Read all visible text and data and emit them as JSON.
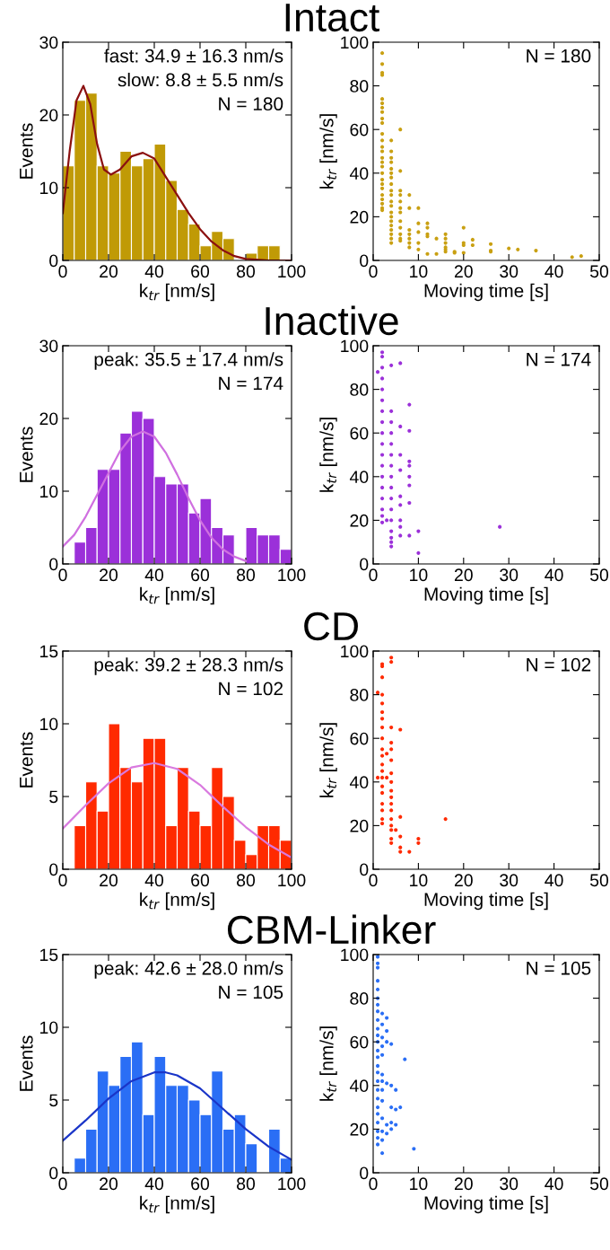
{
  "chart_data": [
    {
      "type": "histogram",
      "title": "Intact",
      "xlabel": "k$_{tr}$ [nm/s]",
      "ylabel": "Events",
      "color": "#c09a06",
      "bins": [
        0,
        5,
        10,
        15,
        20,
        25,
        30,
        35,
        40,
        45,
        50,
        55,
        60,
        65,
        70,
        75,
        80,
        85,
        90,
        95,
        100
      ],
      "values": [
        13,
        22,
        23,
        13,
        12,
        15,
        13,
        14,
        16,
        11,
        7,
        5,
        2,
        4,
        3,
        0,
        1,
        2,
        2,
        0
      ],
      "series": [
        {
          "type": "line",
          "color": "#8b1010",
          "x": [
            0,
            3,
            6,
            9,
            12,
            15,
            18,
            21,
            25,
            30,
            35,
            40,
            45,
            50,
            55,
            60,
            65,
            70,
            75,
            80,
            90,
            100
          ],
          "values": [
            6.5,
            15,
            22,
            24,
            21.5,
            16,
            12.5,
            11.8,
            12.5,
            14.3,
            14.8,
            14,
            11.5,
            9,
            6.5,
            4.3,
            2.6,
            1.4,
            0.6,
            0.2,
            0,
            0
          ]
        }
      ],
      "annotations": [
        "fast: 34.9 ± 16.3 nm/s",
        "slow: 8.8 ± 5.5 nm/s",
        "N = 180"
      ],
      "xlim": [
        0,
        100
      ],
      "ylim": [
        0,
        30
      ],
      "xticks": [
        0,
        20,
        40,
        60,
        80,
        100
      ],
      "yticks": [
        0,
        10,
        20,
        30
      ]
    },
    {
      "type": "scatter",
      "xlabel": "Moving time [s]",
      "ylabel": "k$_{tr}$ [nm/s]",
      "color": "#c9a012",
      "annotations": [
        "N = 180"
      ],
      "x": [
        2,
        2,
        2,
        2,
        2,
        2,
        2,
        2,
        2,
        2,
        2,
        2,
        2,
        2,
        2,
        2,
        2,
        2,
        2,
        2,
        2,
        2,
        2,
        2,
        2,
        2,
        4,
        4,
        4,
        4,
        4,
        4,
        4,
        4,
        4,
        4,
        4,
        4,
        4,
        4,
        4,
        4,
        4,
        4,
        4,
        4,
        6,
        6,
        6,
        6,
        6,
        6,
        6,
        6,
        6,
        6,
        6,
        6,
        8,
        8,
        8,
        8,
        8,
        8,
        8,
        10,
        10,
        10,
        10,
        10,
        12,
        12,
        12,
        12,
        12,
        14,
        14,
        16,
        16,
        16,
        16,
        16,
        16,
        18,
        18,
        20,
        20,
        20,
        20,
        22,
        22,
        26,
        26,
        26,
        30,
        32,
        36,
        44,
        46
      ],
      "values": [
        95,
        90,
        86,
        85,
        74,
        72,
        70,
        68,
        65,
        63,
        58,
        55,
        52,
        50,
        47,
        45,
        43,
        40,
        37,
        35,
        33,
        30,
        28,
        26,
        24,
        23,
        55,
        50,
        47,
        45,
        42,
        40,
        38,
        35,
        32,
        30,
        27,
        25,
        22,
        20,
        18,
        16,
        14,
        12,
        10,
        8,
        60,
        41,
        32,
        30,
        27,
        24,
        22,
        18,
        15,
        12,
        10,
        9,
        30,
        24,
        14,
        12,
        10,
        8,
        6,
        24,
        17,
        13,
        8,
        5,
        17,
        15,
        12,
        11,
        3,
        10,
        3,
        12,
        10,
        8,
        6,
        5,
        4,
        4,
        3.5,
        15,
        8,
        7,
        3.5,
        9.5,
        7,
        7.5,
        4.5,
        4,
        5.5,
        5,
        4.5,
        1.5,
        2
      ],
      "xlim": [
        0,
        50
      ],
      "ylim": [
        0,
        100
      ],
      "xticks": [
        0,
        10,
        20,
        30,
        40,
        50
      ],
      "yticks": [
        0,
        20,
        40,
        60,
        80,
        100
      ]
    },
    {
      "type": "histogram",
      "title": "Inactive",
      "xlabel": "k$_{tr}$ [nm/s]",
      "ylabel": "Events",
      "color": "#9b30d9",
      "bins": [
        0,
        5,
        10,
        15,
        20,
        25,
        30,
        35,
        40,
        45,
        50,
        55,
        60,
        65,
        70,
        75,
        80,
        85,
        90,
        95,
        100
      ],
      "values": [
        0,
        3,
        5,
        13,
        13,
        18,
        21,
        20,
        12,
        11,
        11,
        7,
        9,
        5,
        4,
        0,
        5,
        4,
        4,
        2
      ],
      "series": [
        {
          "type": "line",
          "color": "#d070e0",
          "x": [
            0,
            5,
            10,
            15,
            20,
            25,
            30,
            35,
            40,
            45,
            50,
            55,
            60,
            65,
            70,
            75,
            80
          ],
          "values": [
            2.4,
            4,
            6.5,
            9.5,
            12.5,
            15.5,
            17.5,
            18.2,
            17.5,
            15.3,
            12.3,
            9,
            6,
            3.6,
            2,
            1,
            0.4
          ]
        }
      ],
      "annotations": [
        "peak: 35.5 ± 17.4 nm/s",
        "N = 174"
      ],
      "xlim": [
        0,
        100
      ],
      "ylim": [
        0,
        30
      ],
      "xticks": [
        0,
        20,
        40,
        60,
        80,
        100
      ],
      "yticks": [
        0,
        10,
        20,
        30
      ]
    },
    {
      "type": "scatter",
      "xlabel": "Moving time [s]",
      "ylabel": "k$_{tr}$ [nm/s]",
      "color": "#9b30d9",
      "annotations": [
        "N = 174"
      ],
      "x": [
        1,
        2,
        2,
        2,
        2,
        2,
        2,
        2,
        2,
        2,
        2,
        2,
        2,
        2,
        2,
        2,
        2,
        2,
        2,
        3,
        4,
        4,
        4,
        4,
        4,
        4,
        4,
        4,
        4,
        4,
        4,
        4,
        4,
        4,
        4,
        4,
        6,
        6,
        6,
        6,
        6,
        6,
        6,
        6,
        6,
        8,
        8,
        8,
        8,
        8,
        8,
        8,
        8,
        10,
        10,
        28
      ],
      "values": [
        88,
        97,
        95,
        90,
        85,
        80,
        75,
        70,
        65,
        60,
        55,
        50,
        45,
        40,
        35,
        30,
        25,
        22,
        19,
        20,
        91,
        70,
        65,
        60,
        55,
        50,
        45,
        40,
        35,
        30,
        25,
        20,
        15,
        12,
        10,
        8,
        92,
        63,
        50,
        43,
        31,
        27,
        20,
        17,
        13,
        73,
        61,
        47,
        45,
        40,
        36,
        28,
        13,
        15,
        5,
        17
      ],
      "xlim": [
        0,
        50
      ],
      "ylim": [
        0,
        100
      ],
      "xticks": [
        0,
        10,
        20,
        30,
        40,
        50
      ],
      "yticks": [
        0,
        20,
        40,
        60,
        80,
        100
      ]
    },
    {
      "type": "histogram",
      "title": "CD",
      "xlabel": "k$_{tr}$ [nm/s]",
      "ylabel": "Events",
      "color": "#ff2a00",
      "bins": [
        0,
        5,
        10,
        15,
        20,
        25,
        30,
        35,
        40,
        45,
        50,
        55,
        60,
        65,
        70,
        75,
        80,
        85,
        90,
        95,
        100
      ],
      "values": [
        0,
        3,
        6,
        4,
        10,
        7,
        6,
        9,
        9,
        3,
        7,
        4,
        3,
        7,
        5,
        2,
        1,
        3,
        3,
        2
      ],
      "series": [
        {
          "type": "line",
          "color": "#d97adf",
          "x": [
            0,
            10,
            20,
            30,
            40,
            50,
            60,
            70,
            80,
            90,
            100
          ],
          "values": [
            2.8,
            4.4,
            5.9,
            7,
            7.3,
            6.9,
            5.8,
            4.3,
            2.9,
            1.7,
            0.8
          ]
        }
      ],
      "annotations": [
        "peak: 39.2 ± 28.3 nm/s",
        "N = 102"
      ],
      "xlim": [
        0,
        100
      ],
      "ylim": [
        0,
        15
      ],
      "xticks": [
        0,
        20,
        40,
        60,
        80,
        100
      ],
      "yticks": [
        0,
        5,
        10,
        15
      ]
    },
    {
      "type": "scatter",
      "xlabel": "Moving time [s]",
      "ylabel": "k$_{tr}$ [nm/s]",
      "color": "#ff2a00",
      "annotations": [
        "N = 102"
      ],
      "x": [
        1,
        1,
        2,
        2,
        2,
        2,
        2,
        2,
        2,
        2,
        2,
        2,
        2,
        2,
        2,
        2,
        2,
        2,
        2,
        2,
        2,
        2,
        3,
        3,
        4,
        4,
        4,
        4,
        4,
        4,
        4,
        4,
        4,
        4,
        4,
        4,
        4,
        4,
        4,
        4,
        4,
        5,
        6,
        6,
        6,
        6,
        6,
        8,
        10,
        10,
        16
      ],
      "values": [
        81,
        42,
        94,
        93,
        88,
        80,
        76,
        72,
        69,
        65,
        60,
        55,
        52,
        48,
        45,
        42,
        38,
        35,
        30,
        27,
        23,
        21,
        53,
        42,
        97,
        95,
        65,
        58,
        55,
        50,
        44,
        40,
        36,
        33,
        30,
        27,
        23,
        20,
        18,
        14,
        12,
        18,
        64,
        24,
        15,
        10,
        8,
        8,
        14,
        12,
        23
      ],
      "xlim": [
        0,
        50
      ],
      "ylim": [
        0,
        100
      ],
      "xticks": [
        0,
        10,
        20,
        30,
        40,
        50
      ],
      "yticks": [
        0,
        20,
        40,
        60,
        80,
        100
      ]
    },
    {
      "type": "histogram",
      "title": "CBM-Linker",
      "xlabel": "k$_{tr}$ [nm/s]",
      "ylabel": "Events",
      "color": "#2a6ef5",
      "bins": [
        0,
        5,
        10,
        15,
        20,
        25,
        30,
        35,
        40,
        45,
        50,
        55,
        60,
        65,
        70,
        75,
        80,
        85,
        90,
        95,
        100
      ],
      "values": [
        0,
        1,
        3,
        7,
        6,
        8,
        9,
        4,
        8,
        6,
        6,
        5,
        4,
        7,
        3,
        4,
        2,
        0,
        3,
        1
      ],
      "series": [
        {
          "type": "line",
          "color": "#1a35c8",
          "x": [
            0,
            10,
            20,
            30,
            40,
            45,
            50,
            60,
            70,
            80,
            90,
            100
          ],
          "values": [
            2.2,
            3.6,
            5.1,
            6.3,
            6.9,
            6.9,
            6.7,
            5.8,
            4.4,
            3,
            1.8,
            0.9
          ]
        }
      ],
      "annotations": [
        "peak: 42.6 ± 28.0 nm/s",
        "N = 105"
      ],
      "xlim": [
        0,
        100
      ],
      "ylim": [
        0,
        15
      ],
      "xticks": [
        0,
        20,
        40,
        60,
        80,
        100
      ],
      "yticks": [
        0,
        5,
        10,
        15
      ]
    },
    {
      "type": "scatter",
      "xlabel": "Moving time [s]",
      "ylabel": "k$_{tr}$ [nm/s]",
      "color": "#2a6ef5",
      "annotations": [
        "N = 105"
      ],
      "x": [
        1,
        1,
        1,
        1,
        1,
        1,
        1,
        1,
        1,
        1,
        1,
        1,
        1,
        1,
        1,
        1,
        1,
        1,
        1,
        1,
        1,
        1,
        1,
        1,
        1,
        2,
        2,
        2,
        2,
        2,
        2,
        2,
        2,
        2,
        2,
        2,
        2,
        2,
        3,
        3,
        3,
        3,
        3,
        3,
        4,
        4,
        4,
        4,
        4,
        5,
        5,
        5,
        6,
        7,
        9
      ],
      "values": [
        99,
        96,
        94,
        88,
        84,
        80,
        77,
        74,
        70,
        66,
        63,
        60,
        56,
        53,
        49,
        46,
        42,
        38,
        34,
        30,
        27,
        23,
        19,
        16,
        13,
        73,
        68,
        62,
        58,
        54,
        45,
        42,
        38,
        33,
        25,
        19,
        15,
        9,
        71,
        65,
        60,
        41,
        22,
        18,
        59,
        40,
        30,
        23,
        20,
        38,
        29,
        22,
        30,
        52,
        11
      ],
      "xlim": [
        0,
        50
      ],
      "ylim": [
        0,
        100
      ],
      "xticks": [
        0,
        10,
        20,
        30,
        40,
        50
      ],
      "yticks": [
        0,
        20,
        40,
        60,
        80,
        100
      ]
    }
  ]
}
